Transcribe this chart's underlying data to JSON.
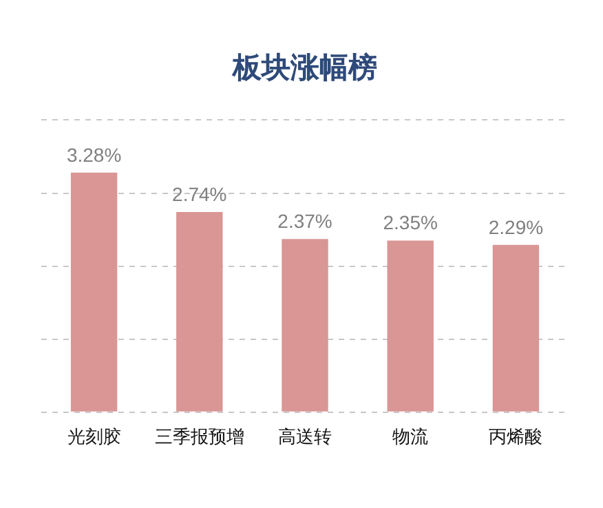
{
  "chart_data": {
    "type": "bar",
    "title": "板块涨幅榜",
    "categories": [
      "光刻胶",
      "三季报预增",
      "高送转",
      "物流",
      "丙烯酸"
    ],
    "values": [
      3.28,
      2.74,
      2.37,
      2.35,
      2.29
    ],
    "value_labels": [
      "3.28%",
      "2.74%",
      "2.37%",
      "2.35%",
      "2.29%"
    ],
    "color": "#d99694",
    "ylim": [
      0,
      4
    ],
    "yticks": [
      {
        "value": 0,
        "label": null
      },
      {
        "value": 1,
        "label": null
      },
      {
        "value": 2,
        "label": null
      },
      {
        "value": 3,
        "label": null
      },
      {
        "value": 4,
        "label": null
      }
    ],
    "grid": "y",
    "tick_labels": "x",
    "legend": false
  }
}
